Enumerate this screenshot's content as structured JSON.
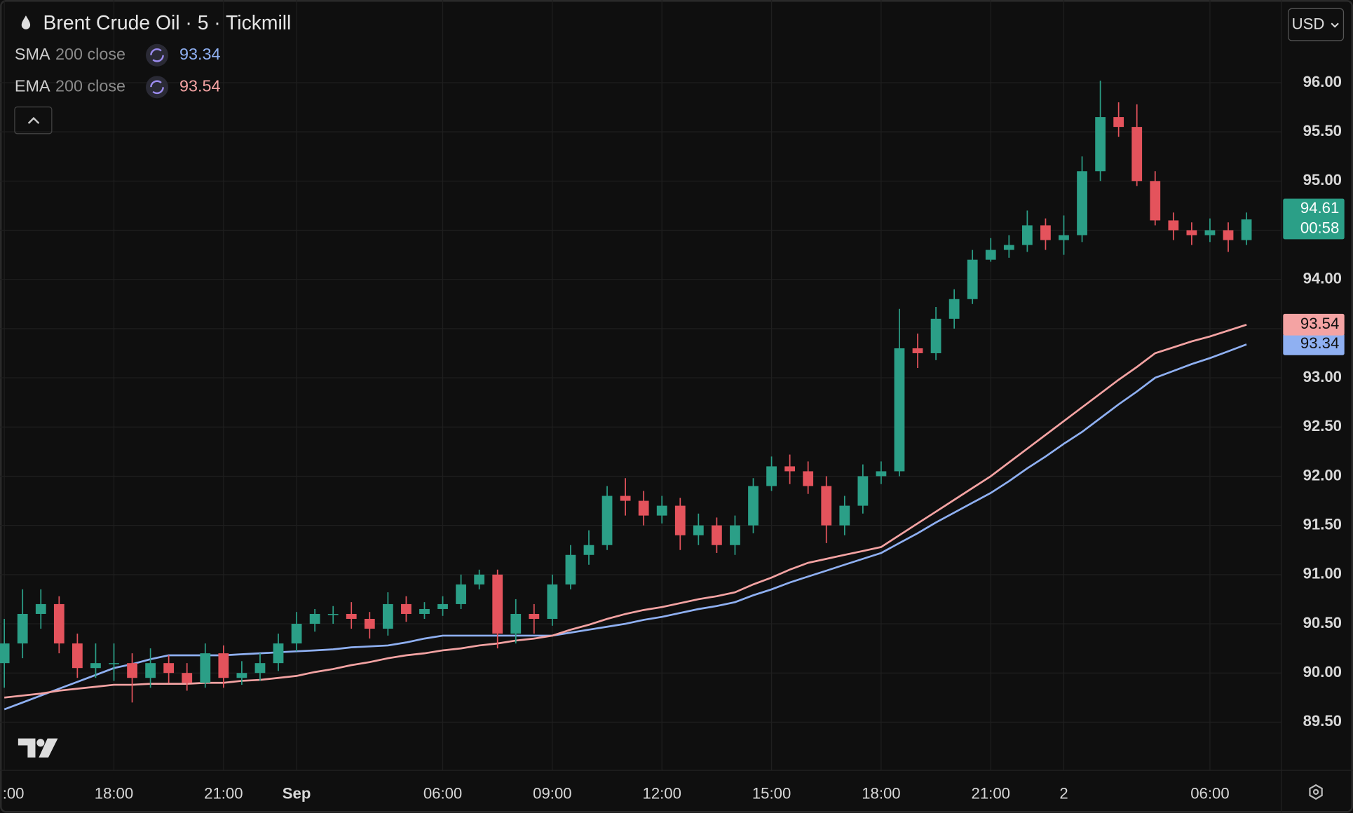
{
  "chart_data": {
    "type": "candlestick",
    "title": "Brent Crude Oil · 5 · Tickmill",
    "currency": "USD",
    "countdown": "00:58",
    "up_color": "#2b9f87",
    "down_color": "#e4535c",
    "categories": [
      ":00",
      null,
      null,
      null,
      null,
      null,
      "18:00",
      null,
      null,
      null,
      null,
      null,
      "21:00",
      null,
      null,
      null,
      "Sep",
      null,
      null,
      null,
      null,
      null,
      null,
      null,
      "06:00",
      null,
      null,
      null,
      null,
      null,
      "09:00",
      null,
      null,
      null,
      null,
      null,
      "12:00",
      null,
      null,
      null,
      null,
      null,
      "15:00",
      null,
      null,
      null,
      null,
      null,
      "18:00",
      null,
      null,
      null,
      null,
      null,
      "21:00",
      null,
      null,
      null,
      "2",
      null,
      null,
      null,
      null,
      null,
      null,
      null,
      "06:00",
      null,
      null
    ],
    "open": [
      90.1,
      90.3,
      90.6,
      90.7,
      90.3,
      90.05,
      90.1,
      90.1,
      89.95,
      90.1,
      90.0,
      89.9,
      90.2,
      89.95,
      90.0,
      90.1,
      90.3,
      90.5,
      90.6,
      90.6,
      90.55,
      90.45,
      90.7,
      90.6,
      90.65,
      90.7,
      90.9,
      91.0,
      90.4,
      90.6,
      90.55,
      90.9,
      91.2,
      91.3,
      91.8,
      91.75,
      91.6,
      91.7,
      91.4,
      91.5,
      91.3,
      91.5,
      91.9,
      92.1,
      92.05,
      91.9,
      91.5,
      91.7,
      92.0,
      92.05,
      93.3,
      93.25,
      93.6,
      93.8,
      94.2,
      94.3,
      94.35,
      94.55,
      94.4,
      94.45,
      95.1,
      95.65,
      95.55,
      95.0,
      94.6,
      94.5,
      94.45,
      94.5,
      94.4
    ],
    "high": [
      90.55,
      90.85,
      90.85,
      90.78,
      90.4,
      90.3,
      90.3,
      90.2,
      90.25,
      90.18,
      90.1,
      90.3,
      90.28,
      90.12,
      90.2,
      90.4,
      90.62,
      90.65,
      90.68,
      90.72,
      90.62,
      90.82,
      90.78,
      90.72,
      90.78,
      91.0,
      91.05,
      91.05,
      90.75,
      90.7,
      91.0,
      91.3,
      91.45,
      91.9,
      91.98,
      91.85,
      91.8,
      91.78,
      91.62,
      91.58,
      91.6,
      91.98,
      92.2,
      92.22,
      92.15,
      92.0,
      91.8,
      92.12,
      92.15,
      93.7,
      93.45,
      93.72,
      93.9,
      94.3,
      94.42,
      94.45,
      94.7,
      94.62,
      94.65,
      95.25,
      96.02,
      95.8,
      95.78,
      95.1,
      94.68,
      94.58,
      94.62,
      94.58,
      94.68
    ],
    "low": [
      89.85,
      90.15,
      90.45,
      90.2,
      89.95,
      89.95,
      89.92,
      89.7,
      89.85,
      89.9,
      89.82,
      89.85,
      89.85,
      89.88,
      89.92,
      90.02,
      90.22,
      90.42,
      90.5,
      90.45,
      90.35,
      90.38,
      90.52,
      90.55,
      90.58,
      90.65,
      90.85,
      90.25,
      90.3,
      90.4,
      90.48,
      90.85,
      91.1,
      91.25,
      91.6,
      91.5,
      91.52,
      91.25,
      91.3,
      91.22,
      91.2,
      91.42,
      91.85,
      91.92,
      91.82,
      91.32,
      91.4,
      91.62,
      91.92,
      92.0,
      93.1,
      93.18,
      93.5,
      93.75,
      94.18,
      94.22,
      94.28,
      94.3,
      94.25,
      94.38,
      95.0,
      95.45,
      94.95,
      94.55,
      94.4,
      94.35,
      94.38,
      94.28,
      94.35
    ],
    "close": [
      90.3,
      90.6,
      90.7,
      90.3,
      90.05,
      90.1,
      90.1,
      89.95,
      90.1,
      90.0,
      89.9,
      90.2,
      89.95,
      90.0,
      90.1,
      90.3,
      90.5,
      90.6,
      90.6,
      90.55,
      90.45,
      90.7,
      90.6,
      90.65,
      90.7,
      90.9,
      91.0,
      90.4,
      90.6,
      90.55,
      90.9,
      91.2,
      91.3,
      91.8,
      91.75,
      91.6,
      91.7,
      91.4,
      91.5,
      91.3,
      91.5,
      91.9,
      92.1,
      92.05,
      91.9,
      91.5,
      91.7,
      92.0,
      92.05,
      93.3,
      93.25,
      93.6,
      93.8,
      94.2,
      94.3,
      94.35,
      94.55,
      94.4,
      94.45,
      95.1,
      95.65,
      95.55,
      95.0,
      94.6,
      94.5,
      94.45,
      94.5,
      94.4,
      94.61
    ],
    "series": [
      {
        "name": "SMA",
        "params": "200 close",
        "color": "#8fb0f2",
        "values": [
          89.63,
          89.7,
          89.77,
          89.84,
          89.91,
          89.98,
          90.05,
          90.09,
          90.14,
          90.18,
          90.18,
          90.18,
          90.18,
          90.19,
          90.2,
          90.21,
          90.22,
          90.23,
          90.24,
          90.26,
          90.27,
          90.28,
          90.31,
          90.35,
          90.38,
          90.38,
          90.38,
          90.38,
          90.38,
          90.38,
          90.38,
          90.41,
          90.44,
          90.47,
          90.5,
          90.54,
          90.57,
          90.61,
          90.65,
          90.68,
          90.72,
          90.79,
          90.85,
          90.92,
          90.98,
          91.04,
          91.1,
          91.16,
          91.22,
          91.32,
          91.42,
          91.53,
          91.63,
          91.73,
          91.83,
          91.95,
          92.08,
          92.2,
          92.33,
          92.45,
          92.59,
          92.73,
          92.86,
          93.0,
          93.07,
          93.14,
          93.2,
          93.27,
          93.34
        ]
      },
      {
        "name": "EMA",
        "params": "200 close",
        "color": "#f4a3a3",
        "values": [
          89.75,
          89.77,
          89.79,
          89.82,
          89.84,
          89.86,
          89.88,
          89.88,
          89.89,
          89.89,
          89.89,
          89.9,
          89.9,
          89.92,
          89.93,
          89.95,
          89.97,
          90.01,
          90.04,
          90.08,
          90.11,
          90.15,
          90.18,
          90.2,
          90.23,
          90.25,
          90.28,
          90.3,
          90.33,
          90.35,
          90.38,
          90.44,
          90.49,
          90.55,
          90.6,
          90.64,
          90.67,
          90.71,
          90.75,
          90.78,
          90.82,
          90.9,
          90.97,
          91.05,
          91.12,
          91.16,
          91.2,
          91.24,
          91.28,
          91.4,
          91.52,
          91.64,
          91.76,
          91.88,
          92.0,
          92.14,
          92.28,
          92.42,
          92.56,
          92.7,
          92.84,
          92.98,
          93.11,
          93.25,
          93.31,
          93.37,
          93.42,
          93.48,
          93.54
        ]
      }
    ],
    "ylim": [
      89.01,
      96.84
    ],
    "yticks": [
      {
        "value": 89.5,
        "label": "89.50"
      },
      {
        "value": 90,
        "label": "90.00"
      },
      {
        "value": 90.5,
        "label": "90.50"
      },
      {
        "value": 91,
        "label": "91.00"
      },
      {
        "value": 91.5,
        "label": "91.50"
      },
      {
        "value": 92,
        "label": "92.00"
      },
      {
        "value": 92.5,
        "label": "92.50"
      },
      {
        "value": 93,
        "label": "93.00"
      },
      {
        "value": 93.5,
        "label": "93.50"
      },
      {
        "value": 94,
        "label": "94.00"
      },
      {
        "value": 94.5,
        "label": "94.50"
      },
      {
        "value": 95,
        "label": "95.00"
      },
      {
        "value": 95.5,
        "label": "95.50"
      },
      {
        "value": 96,
        "label": "96.00"
      }
    ],
    "grid": true
  }
}
